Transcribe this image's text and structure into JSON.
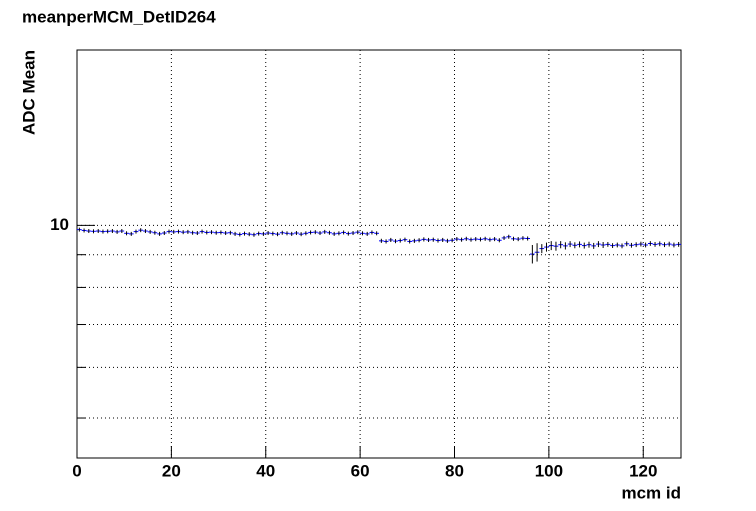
{
  "chart_data": {
    "type": "histogram",
    "title": "meanperMCM_DetID264",
    "xlabel": "mcm id",
    "ylabel": "ADC Mean",
    "bins": [
      0,
      1,
      2,
      3,
      4,
      5,
      6,
      7,
      8,
      9,
      10,
      11,
      12,
      13,
      14,
      15,
      16,
      17,
      18,
      19,
      20,
      21,
      22,
      23,
      24,
      25,
      26,
      27,
      28,
      29,
      30,
      31,
      32,
      33,
      34,
      35,
      36,
      37,
      38,
      39,
      40,
      41,
      42,
      43,
      44,
      45,
      46,
      47,
      48,
      49,
      50,
      51,
      52,
      53,
      54,
      55,
      56,
      57,
      58,
      59,
      60,
      61,
      62,
      63,
      64,
      65,
      66,
      67,
      68,
      69,
      70,
      71,
      72,
      73,
      74,
      75,
      76,
      77,
      78,
      79,
      80,
      81,
      82,
      83,
      84,
      85,
      86,
      87,
      88,
      89,
      90,
      91,
      92,
      93,
      94,
      95,
      96,
      97,
      98,
      99,
      100,
      101,
      102,
      103,
      104,
      105,
      106,
      107,
      108,
      109,
      110,
      111,
      112,
      113,
      114,
      115,
      116,
      117,
      118,
      119,
      120,
      121,
      122,
      123,
      124,
      125,
      126,
      127,
      128
    ],
    "values": [
      9.85,
      9.82,
      9.8,
      9.79,
      9.8,
      9.78,
      9.79,
      9.8,
      9.77,
      9.8,
      9.72,
      9.7,
      9.78,
      9.83,
      9.8,
      9.77,
      9.74,
      9.7,
      9.73,
      9.78,
      9.77,
      9.78,
      9.76,
      9.77,
      9.74,
      9.73,
      9.78,
      9.75,
      9.76,
      9.74,
      9.75,
      9.73,
      9.74,
      9.7,
      9.68,
      9.71,
      9.69,
      9.67,
      9.71,
      9.7,
      9.73,
      9.71,
      9.69,
      9.74,
      9.72,
      9.7,
      9.73,
      9.69,
      9.72,
      9.75,
      9.76,
      9.73,
      9.77,
      9.74,
      9.7,
      9.72,
      9.75,
      9.71,
      9.73,
      9.76,
      9.72,
      9.7,
      9.75,
      9.72,
      9.46,
      9.44,
      9.49,
      9.45,
      9.47,
      9.5,
      9.44,
      9.46,
      9.48,
      9.51,
      9.49,
      9.5,
      9.47,
      9.49,
      9.46,
      9.48,
      9.52,
      9.5,
      9.53,
      9.5,
      9.52,
      9.51,
      9.53,
      9.5,
      9.52,
      9.48,
      9.56,
      9.6,
      9.53,
      9.52,
      9.55,
      9.54,
      9.02,
      9.08,
      9.2,
      9.25,
      9.3,
      9.28,
      9.33,
      9.29,
      9.35,
      9.31,
      9.34,
      9.3,
      9.33,
      9.29,
      9.35,
      9.32,
      9.34,
      9.3,
      9.32,
      9.29,
      9.36,
      9.31,
      9.33,
      9.35,
      9.32,
      9.37,
      9.34,
      9.36,
      9.33,
      9.35,
      9.32,
      9.34
    ],
    "errors": [
      0.07,
      0.07,
      0.07,
      0.07,
      0.07,
      0.07,
      0.07,
      0.07,
      0.07,
      0.07,
      0.07,
      0.07,
      0.07,
      0.07,
      0.07,
      0.07,
      0.07,
      0.07,
      0.07,
      0.07,
      0.07,
      0.07,
      0.07,
      0.07,
      0.07,
      0.07,
      0.07,
      0.07,
      0.07,
      0.07,
      0.07,
      0.07,
      0.07,
      0.07,
      0.07,
      0.07,
      0.07,
      0.07,
      0.07,
      0.07,
      0.07,
      0.07,
      0.07,
      0.07,
      0.07,
      0.07,
      0.07,
      0.07,
      0.07,
      0.07,
      0.07,
      0.07,
      0.07,
      0.07,
      0.07,
      0.07,
      0.07,
      0.07,
      0.07,
      0.07,
      0.07,
      0.07,
      0.07,
      0.07,
      0.07,
      0.07,
      0.07,
      0.07,
      0.07,
      0.07,
      0.07,
      0.07,
      0.07,
      0.07,
      0.07,
      0.07,
      0.07,
      0.07,
      0.07,
      0.07,
      0.07,
      0.07,
      0.07,
      0.07,
      0.07,
      0.07,
      0.07,
      0.07,
      0.07,
      0.07,
      0.07,
      0.07,
      0.07,
      0.07,
      0.07,
      0.07,
      0.3,
      0.3,
      0.15,
      0.15,
      0.15,
      0.15,
      0.12,
      0.12,
      0.1,
      0.1,
      0.1,
      0.1,
      0.1,
      0.1,
      0.1,
      0.1,
      0.08,
      0.08,
      0.08,
      0.08,
      0.08,
      0.08,
      0.08,
      0.08,
      0.08,
      0.08,
      0.08,
      0.08,
      0.08,
      0.08,
      0.08,
      0.08
    ],
    "color": "#0000ff",
    "xlim": [
      0,
      128
    ],
    "xticks": [
      0,
      20,
      40,
      60,
      80,
      100,
      120
    ],
    "ylim": [
      4.33,
      18.8
    ],
    "yticks": [
      10
    ],
    "yminor_ticks": [
      5,
      6,
      7,
      8,
      9
    ],
    "log_y": true,
    "grid": true
  }
}
